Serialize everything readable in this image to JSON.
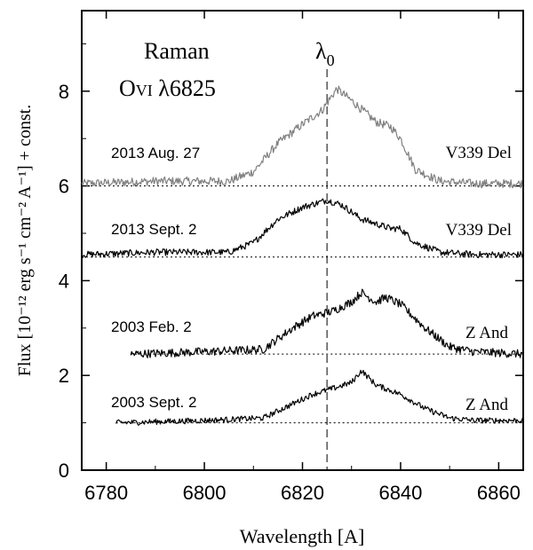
{
  "chart_data": {
    "type": "line",
    "title_lines": [
      "Raman",
      "O",
      "VI",
      " λ6825"
    ],
    "lambda0_label": "λ",
    "lambda0_sub": "0",
    "lambda0": 6825,
    "xlabel": "Wavelength [A]",
    "ylabel": "Flux [10⁻¹² erg s⁻¹ cm⁻² A⁻¹] + const.",
    "xlim": [
      6775,
      6865
    ],
    "ylim": [
      0,
      9.7
    ],
    "xticks": [
      6780,
      6800,
      6820,
      6840,
      6860
    ],
    "yticks": [
      0,
      2,
      4,
      6,
      8
    ],
    "series": [
      {
        "name": "2013 Aug. 27",
        "star": "V339 Del",
        "color": "#808080",
        "baseline": 6.0,
        "x_start": 6775,
        "noise": 0.09,
        "x": [
          6775,
          6790,
          6805,
          6810,
          6815,
          6820,
          6824,
          6827,
          6830,
          6835,
          6838,
          6840,
          6843,
          6848,
          6855,
          6865
        ],
        "y": [
          6.05,
          6.1,
          6.1,
          6.3,
          6.9,
          7.3,
          7.6,
          8.05,
          7.8,
          7.35,
          7.25,
          7.0,
          6.35,
          6.1,
          6.05,
          6.05
        ]
      },
      {
        "name": "2013 Sept. 2",
        "star": "V339 Del",
        "color": "#000000",
        "baseline": 4.5,
        "x_start": 6775,
        "noise": 0.07,
        "x": [
          6775,
          6790,
          6805,
          6810,
          6815,
          6820,
          6825,
          6828,
          6832,
          6838,
          6840,
          6843,
          6848,
          6855,
          6865
        ],
        "y": [
          4.55,
          4.6,
          4.6,
          4.8,
          5.3,
          5.55,
          5.7,
          5.6,
          5.3,
          5.1,
          5.1,
          4.8,
          4.6,
          4.55,
          4.55
        ]
      },
      {
        "name": "2003 Feb. 2",
        "star": "Z And",
        "color": "#000000",
        "baseline": 2.45,
        "x_start": 6785,
        "noise": 0.09,
        "x": [
          6785,
          6800,
          6812,
          6818,
          6822,
          6826,
          6830,
          6832,
          6835,
          6837,
          6840,
          6845,
          6850,
          6855,
          6865
        ],
        "y": [
          2.45,
          2.5,
          2.55,
          3.0,
          3.25,
          3.35,
          3.55,
          3.75,
          3.55,
          3.65,
          3.5,
          3.0,
          2.6,
          2.5,
          2.45
        ]
      },
      {
        "name": "2003 Sept. 2",
        "star": "Z And",
        "color": "#000000",
        "baseline": 1.0,
        "x_start": 6782,
        "noise": 0.06,
        "x": [
          6782,
          6800,
          6812,
          6818,
          6822,
          6827,
          6830,
          6832,
          6835,
          6840,
          6845,
          6850,
          6855,
          6865
        ],
        "y": [
          1.0,
          1.05,
          1.1,
          1.4,
          1.6,
          1.75,
          1.85,
          2.1,
          1.8,
          1.6,
          1.3,
          1.1,
          1.05,
          1.05
        ]
      }
    ]
  }
}
